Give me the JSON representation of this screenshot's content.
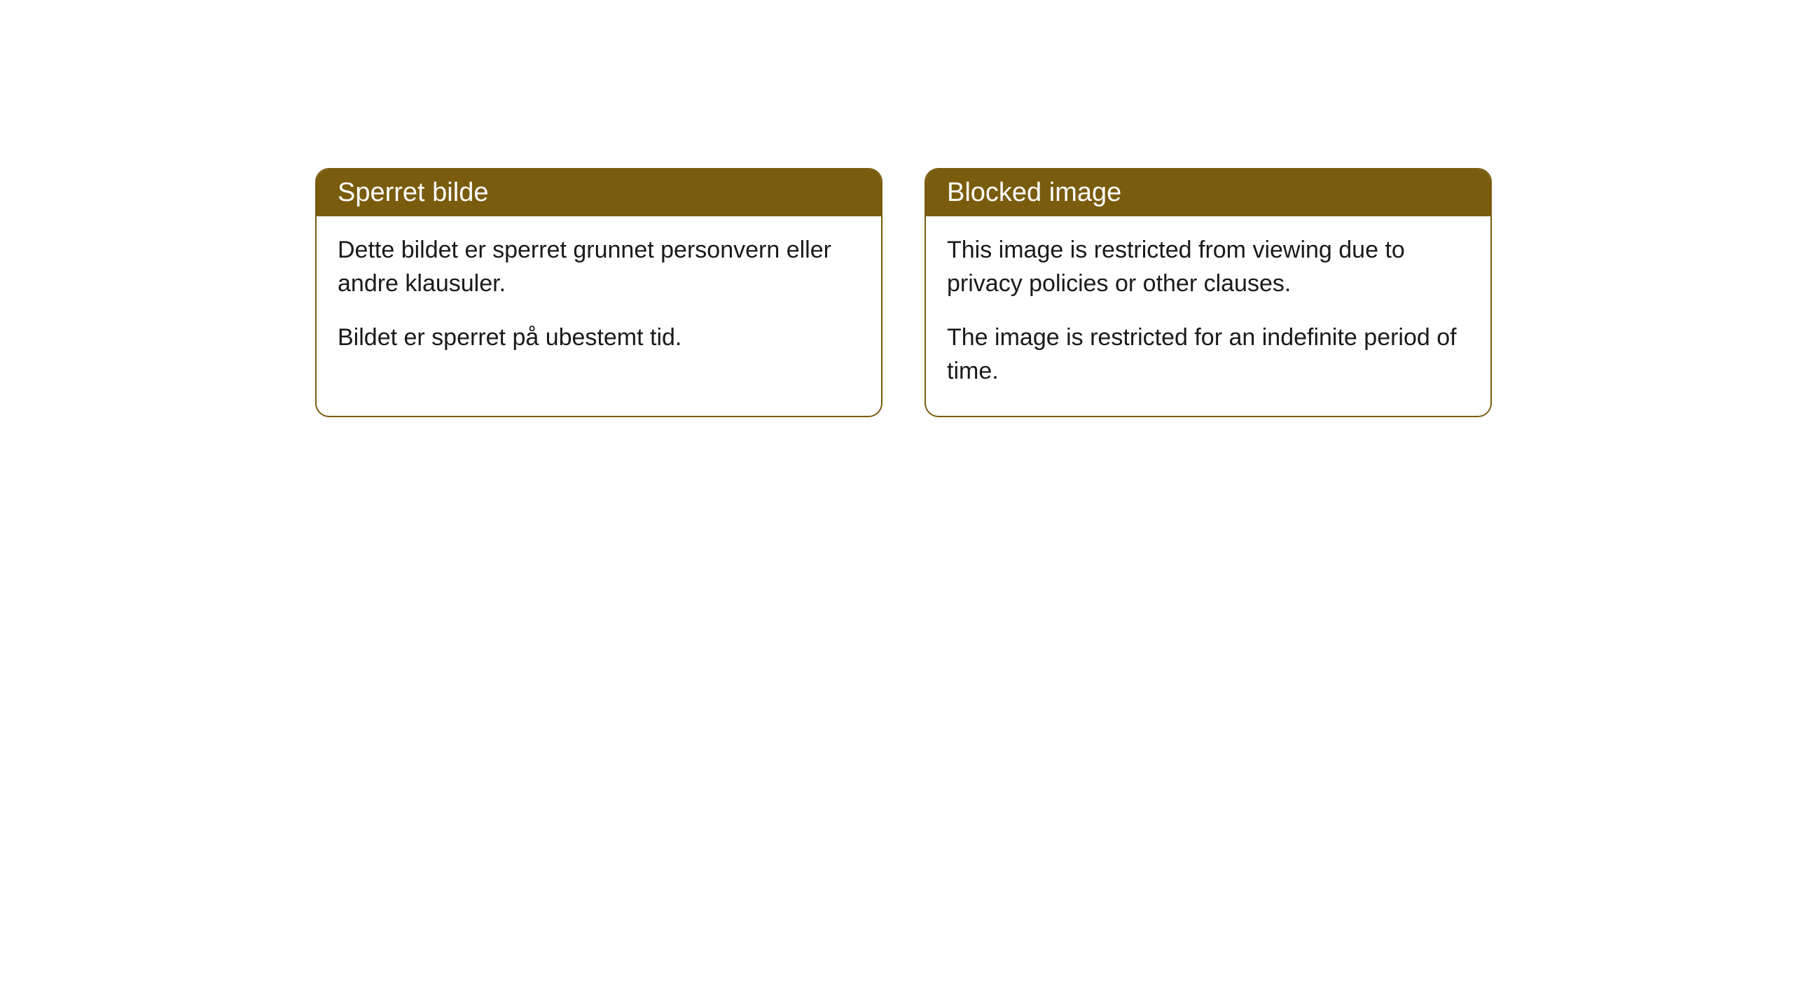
{
  "cards": [
    {
      "title": "Sperret bilde",
      "paragraph1": "Dette bildet er sperret grunnet personvern eller andre klausuler.",
      "paragraph2": "Bildet er sperret på ubestemt tid."
    },
    {
      "title": "Blocked image",
      "paragraph1": "This image is restricted from viewing due to privacy policies or other clauses.",
      "paragraph2": "The image is restricted for an indefinite period of time."
    }
  ],
  "styling": {
    "header_bg_color": "#7a5c0f",
    "header_text_color": "#ffffff",
    "body_text_color": "#1a1a1a",
    "card_border_color": "#7a5c0f",
    "card_bg_color": "#ffffff",
    "page_bg_color": "#ffffff",
    "title_fontsize": 38,
    "body_fontsize": 34,
    "border_radius": 20
  }
}
